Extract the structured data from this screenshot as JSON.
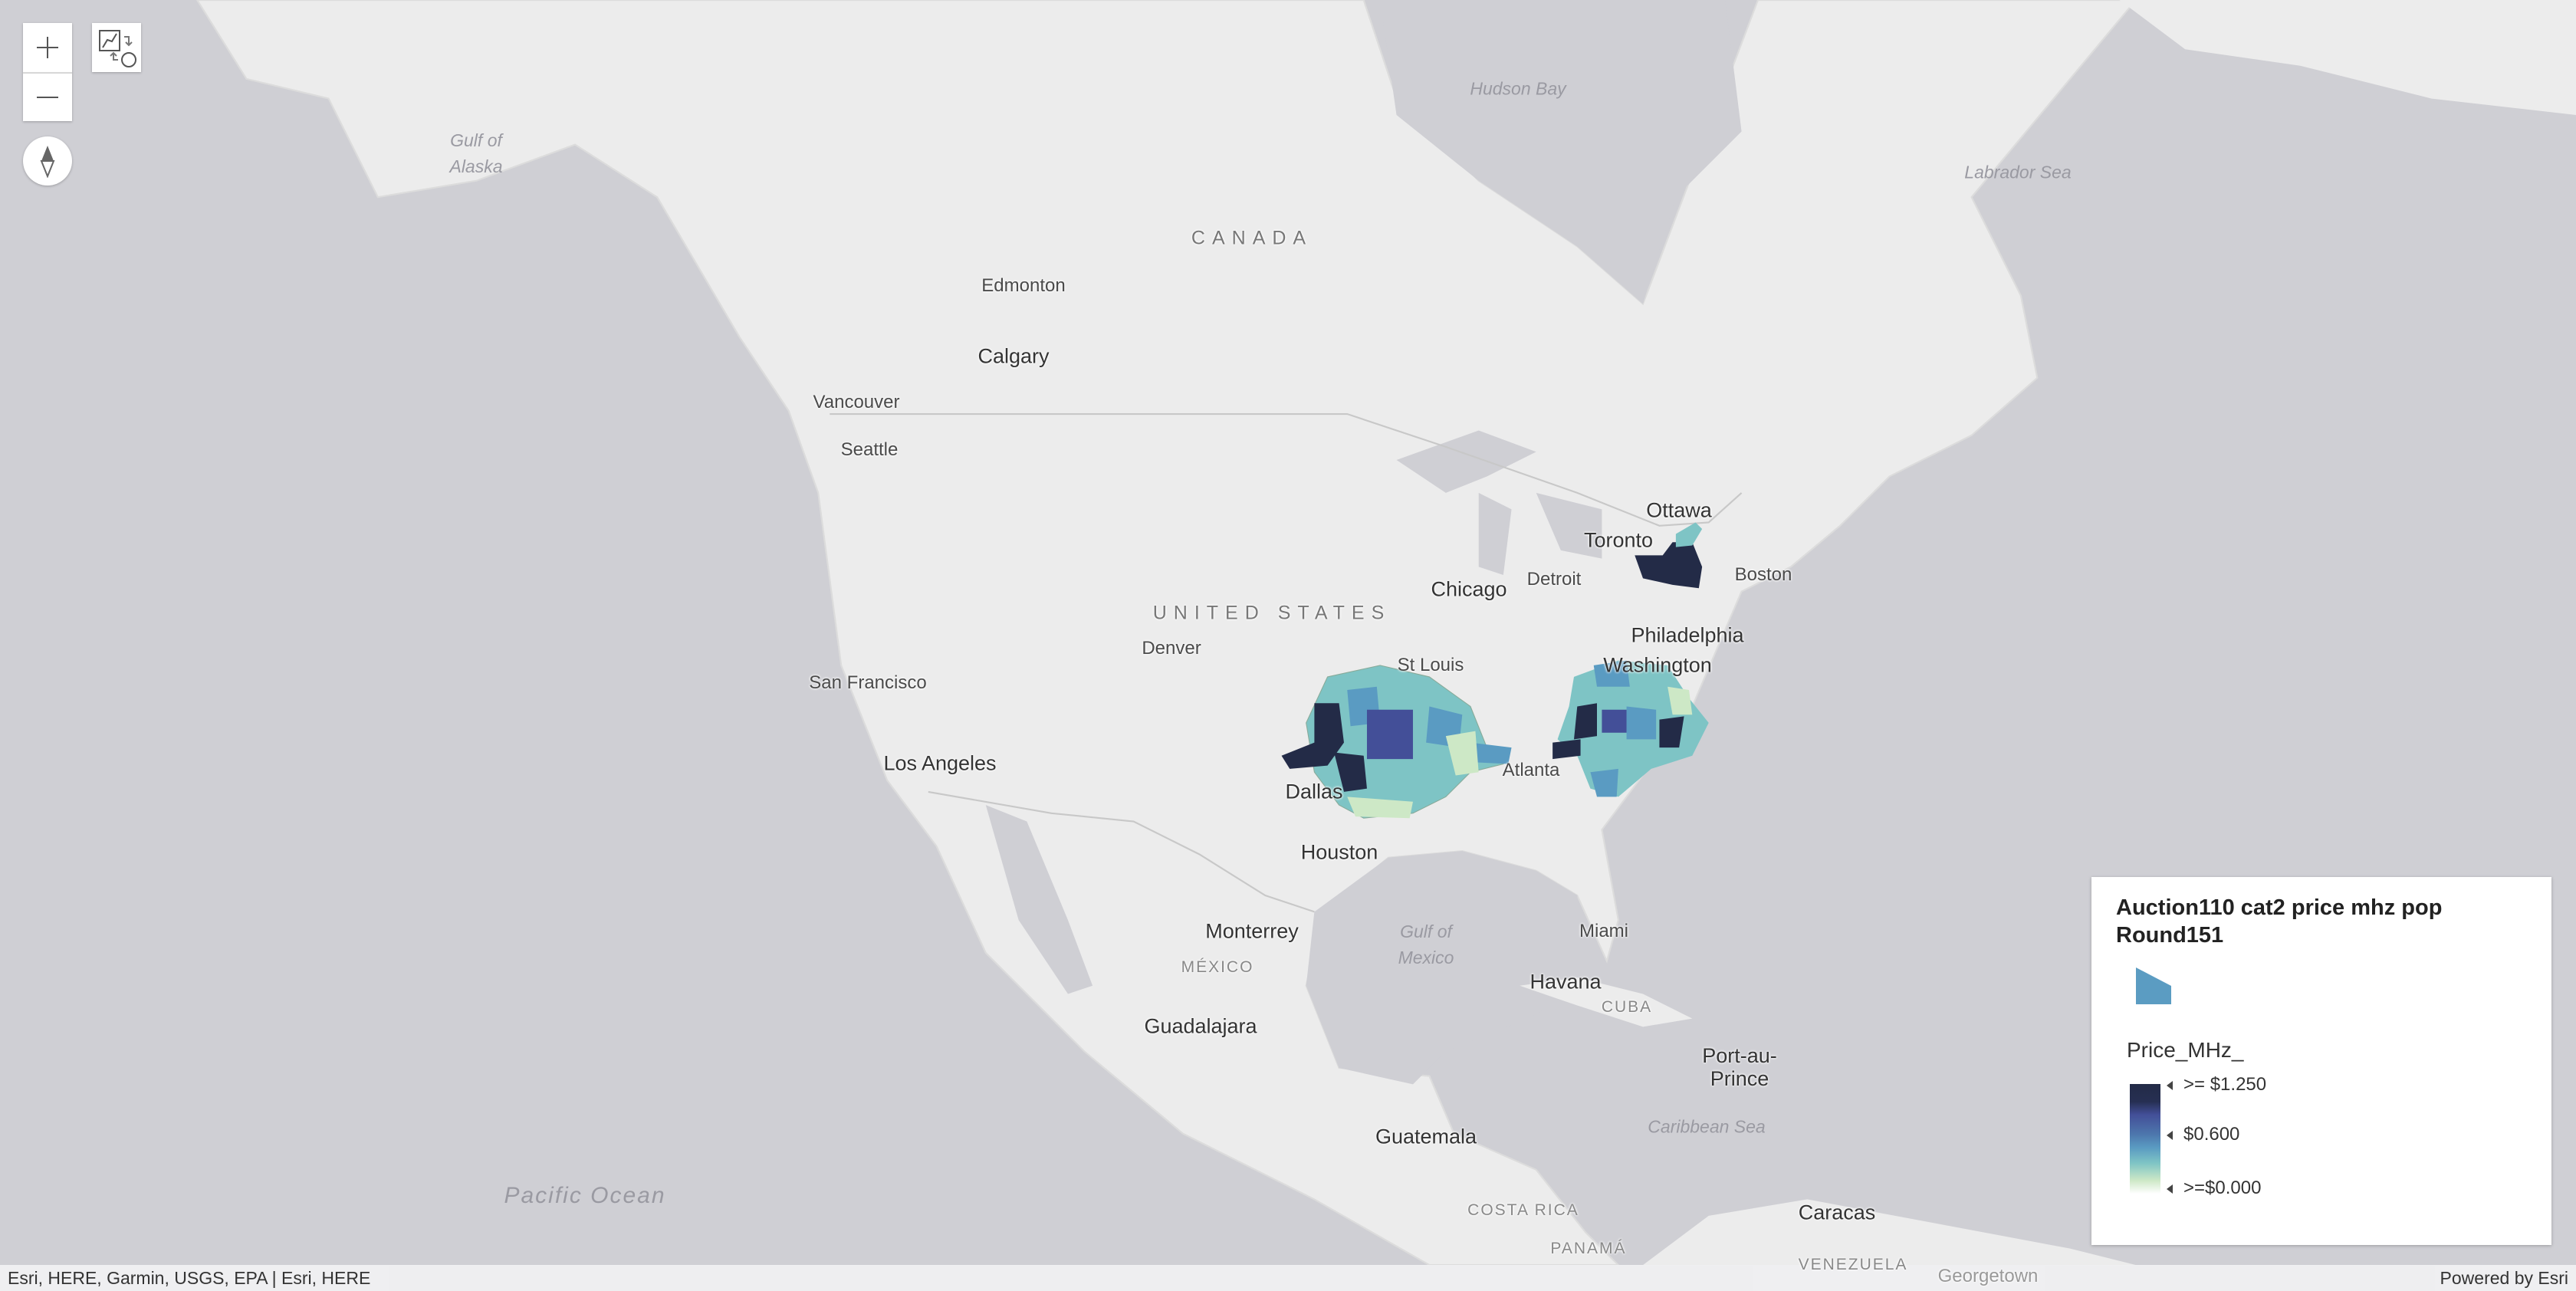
{
  "map": {
    "colors": {
      "water": "#cfcfd4",
      "land": "#ececec",
      "border": "#bdbdbd"
    },
    "labels": {
      "hudson_bay": "Hudson Bay",
      "labrador_sea": "Labrador Sea",
      "gulf_of_alaska": "Gulf of\nAlaska",
      "canada": "CANADA",
      "edmonton": "Edmonton",
      "calgary": "Calgary",
      "vancouver": "Vancouver",
      "seattle": "Seattle",
      "ottawa": "Ottawa",
      "toronto": "Toronto",
      "boston": "Boston",
      "chicago": "Chicago",
      "detroit": "Detroit",
      "united_states": "UNITED STATES",
      "denver": "Denver",
      "philadelphia": "Philadelphia",
      "washington": "Washington",
      "st_louis": "St Louis",
      "san_francisco": "San Francisco",
      "los_angeles": "Los Angeles",
      "atlanta": "Atlanta",
      "dallas": "Dallas",
      "houston": "Houston",
      "monterrey": "Monterrey",
      "mexico": "MÉXICO",
      "gulf_of_mexico": "Gulf of\nMexico",
      "miami": "Miami",
      "havana": "Havana",
      "cuba": "CUBA",
      "port_au_prince": "Port-au-\nPrince",
      "guadalajara": "Guadalajara",
      "caribbean_sea": "Caribbean Sea",
      "guatemala": "Guatemala",
      "pacific_ocean": "Pacific Ocean",
      "costa_rica": "COSTA RICA",
      "caracas": "Caracas",
      "panama": "PANAMÁ",
      "venezuela": "VENEZUELA",
      "georgetown": "Georgetown"
    }
  },
  "controls": {
    "zoom_in_icon": "plus-icon",
    "zoom_out_icon": "minus-icon",
    "basemap_toggle_icon": "basemap-toggle-icon",
    "compass_icon": "compass-icon"
  },
  "legend": {
    "title": "Auction110 cat2 price mhz pop Round151",
    "symbol_color": "#5b9cc2",
    "field": "Price_MHz_",
    "stops": [
      ">= $1.250",
      "$0.600",
      ">=$0.000"
    ],
    "ramp_colors": [
      "#232b47",
      "#434f98",
      "#5a9bc2",
      "#7ec4c5",
      "#cde8c6",
      "#ffffff"
    ]
  },
  "attribution": {
    "sources": "Esri, HERE, Garmin, USGS, EPA | Esri, HERE",
    "powered_by": "Powered by Esri"
  }
}
